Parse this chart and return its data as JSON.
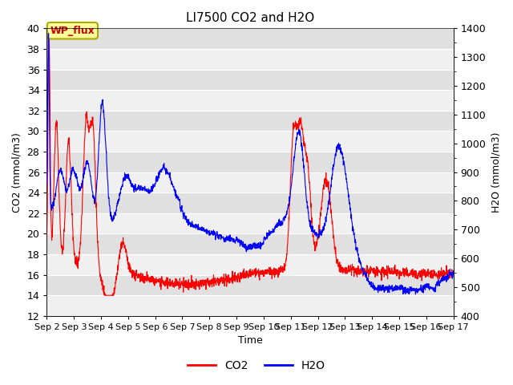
{
  "title": "LI7500 CO2 and H2O",
  "xlabel": "Time",
  "ylabel_left": "CO2 (mmol/m3)",
  "ylabel_right": "H2O (mmol/m3)",
  "annotation_text": "WP_flux",
  "ylim_left": [
    12,
    40
  ],
  "ylim_right": [
    400,
    1400
  ],
  "yticks_left": [
    12,
    14,
    16,
    18,
    20,
    22,
    24,
    26,
    28,
    30,
    32,
    34,
    36,
    38,
    40
  ],
  "yticks_right": [
    400,
    500,
    600,
    700,
    800,
    900,
    1000,
    1100,
    1200,
    1300,
    1400
  ],
  "xtick_labels": [
    "Sep 2",
    "Sep 3",
    "Sep 4",
    "Sep 5",
    "Sep 6",
    "Sep 7",
    "Sep 8",
    "Sep 9",
    "Sep 10",
    "Sep 11",
    "Sep 12",
    "Sep 13",
    "Sep 14",
    "Sep 15",
    "Sep 16",
    "Sep 17"
  ],
  "n_points": 2000,
  "co2_color": "#FF0000",
  "h2o_color": "#0000FF",
  "fig_bg": "#FFFFFF",
  "plot_bg_light": "#F0F0F0",
  "plot_bg_dark": "#E0E0E0",
  "annotation_facecolor": "#FFFF99",
  "annotation_edgecolor": "#AAAA00",
  "annotation_textcolor": "#CC0000",
  "grid_color": "#FFFFFF",
  "legend_co2": "CO2",
  "legend_h2o": "H2O",
  "linewidth": 0.8,
  "title_fontsize": 11,
  "axis_label_fontsize": 9,
  "tick_fontsize": 9
}
